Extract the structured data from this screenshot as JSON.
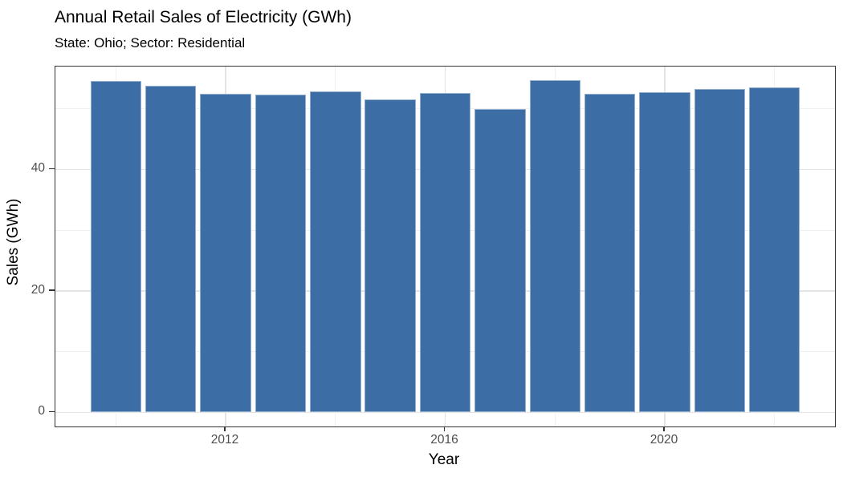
{
  "chart_data": {
    "type": "bar",
    "title": "Annual Retail Sales of Electricity (GWh)",
    "subtitle": "State: Ohio; Sector: Residential",
    "xlabel": "Year",
    "ylabel": "Sales (GWh)",
    "categories": [
      2010,
      2011,
      2012,
      2013,
      2014,
      2015,
      2016,
      2017,
      2018,
      2019,
      2020,
      2021,
      2022
    ],
    "values": [
      54.5,
      53.8,
      52.4,
      52.3,
      52.8,
      51.5,
      52.6,
      49.9,
      54.7,
      52.4,
      52.7,
      53.3,
      53.5
    ],
    "x_major_ticks": [
      2012,
      2016,
      2020
    ],
    "x_minor_gridlines": [
      2010,
      2014,
      2018,
      2022
    ],
    "y_major_ticks": [
      0,
      20,
      40
    ],
    "y_minor_gridlines": [
      10,
      30,
      50
    ],
    "xlim": [
      2008.9,
      2023.1
    ],
    "ylim": [
      -2.7,
      57.2
    ],
    "bar_color": "#3c6ea5",
    "bar_edge_color": "#93afd0",
    "grid": true,
    "legend": false,
    "panel_border_color": "#333333",
    "tick_label_color": "#4d4d4d"
  }
}
